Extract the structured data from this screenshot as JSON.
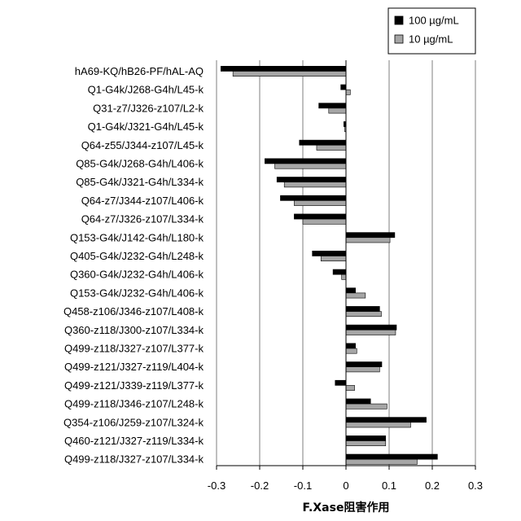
{
  "chart_data": {
    "type": "bar",
    "orientation": "horizontal",
    "xlabel": "F.Xase阻害作用",
    "ylabel": "",
    "xlim": [
      -0.3,
      0.3
    ],
    "xticks": [
      -0.3,
      -0.2,
      -0.1,
      0,
      0.1,
      0.2,
      0.3
    ],
    "xtick_labels": [
      "-0.3",
      "-0.2",
      "-0.1",
      "0",
      "0.1",
      "0.2",
      "0.3"
    ],
    "grid": "vertical",
    "legend_position": "top-right",
    "categories": [
      "hA69-KQ/hB26-PF/hAL-AQ",
      "Q1-G4k/J268-G4h/L45-k",
      "Q31-z7/J326-z107/L2-k",
      "Q1-G4k/J321-G4h/L45-k",
      "Q64-z55/J344-z107/L45-k",
      "Q85-G4k/J268-G4h/L406-k",
      "Q85-G4k/J321-G4h/L334-k",
      "Q64-z7/J344-z107/L406-k",
      "Q64-z7/J326-z107/L334-k",
      "Q153-G4k/J142-G4h/L180-k",
      "Q405-G4k/J232-G4h/L248-k",
      "Q360-G4k/J232-G4h/L406-k",
      "Q153-G4k/J232-G4h/L406-k",
      "Q458-z106/J346-z107/L408-k",
      "Q360-z118/J300-z107/L334-k",
      "Q499-z118/J327-z107/L377-k",
      "Q499-z121/J327-z119/L404-k",
      "Q499-z121/J339-z119/L377-k",
      "Q499-z118/J346-z107/L248-k",
      "Q354-z106/J259-z107/L324-k",
      "Q460-z121/J327-z119/L334-k",
      "Q499-z118/J327-z107/L334-k"
    ],
    "series": [
      {
        "name": "100 µg/mL",
        "color": "#000000",
        "values": [
          -0.29,
          -0.012,
          -0.063,
          -0.005,
          -0.108,
          -0.188,
          -0.16,
          -0.152,
          -0.12,
          0.113,
          -0.078,
          -0.03,
          0.022,
          0.078,
          0.117,
          0.022,
          0.083,
          -0.025,
          0.057,
          0.186,
          0.092,
          0.212
        ]
      },
      {
        "name": "10 µg/mL",
        "color": "#a6a6a6",
        "values": [
          -0.262,
          0.01,
          -0.04,
          -0.003,
          -0.068,
          -0.165,
          -0.143,
          -0.12,
          -0.1,
          0.102,
          -0.058,
          -0.01,
          0.045,
          0.082,
          0.115,
          0.025,
          0.078,
          0.02,
          0.095,
          0.15,
          0.092,
          0.165
        ]
      }
    ]
  }
}
